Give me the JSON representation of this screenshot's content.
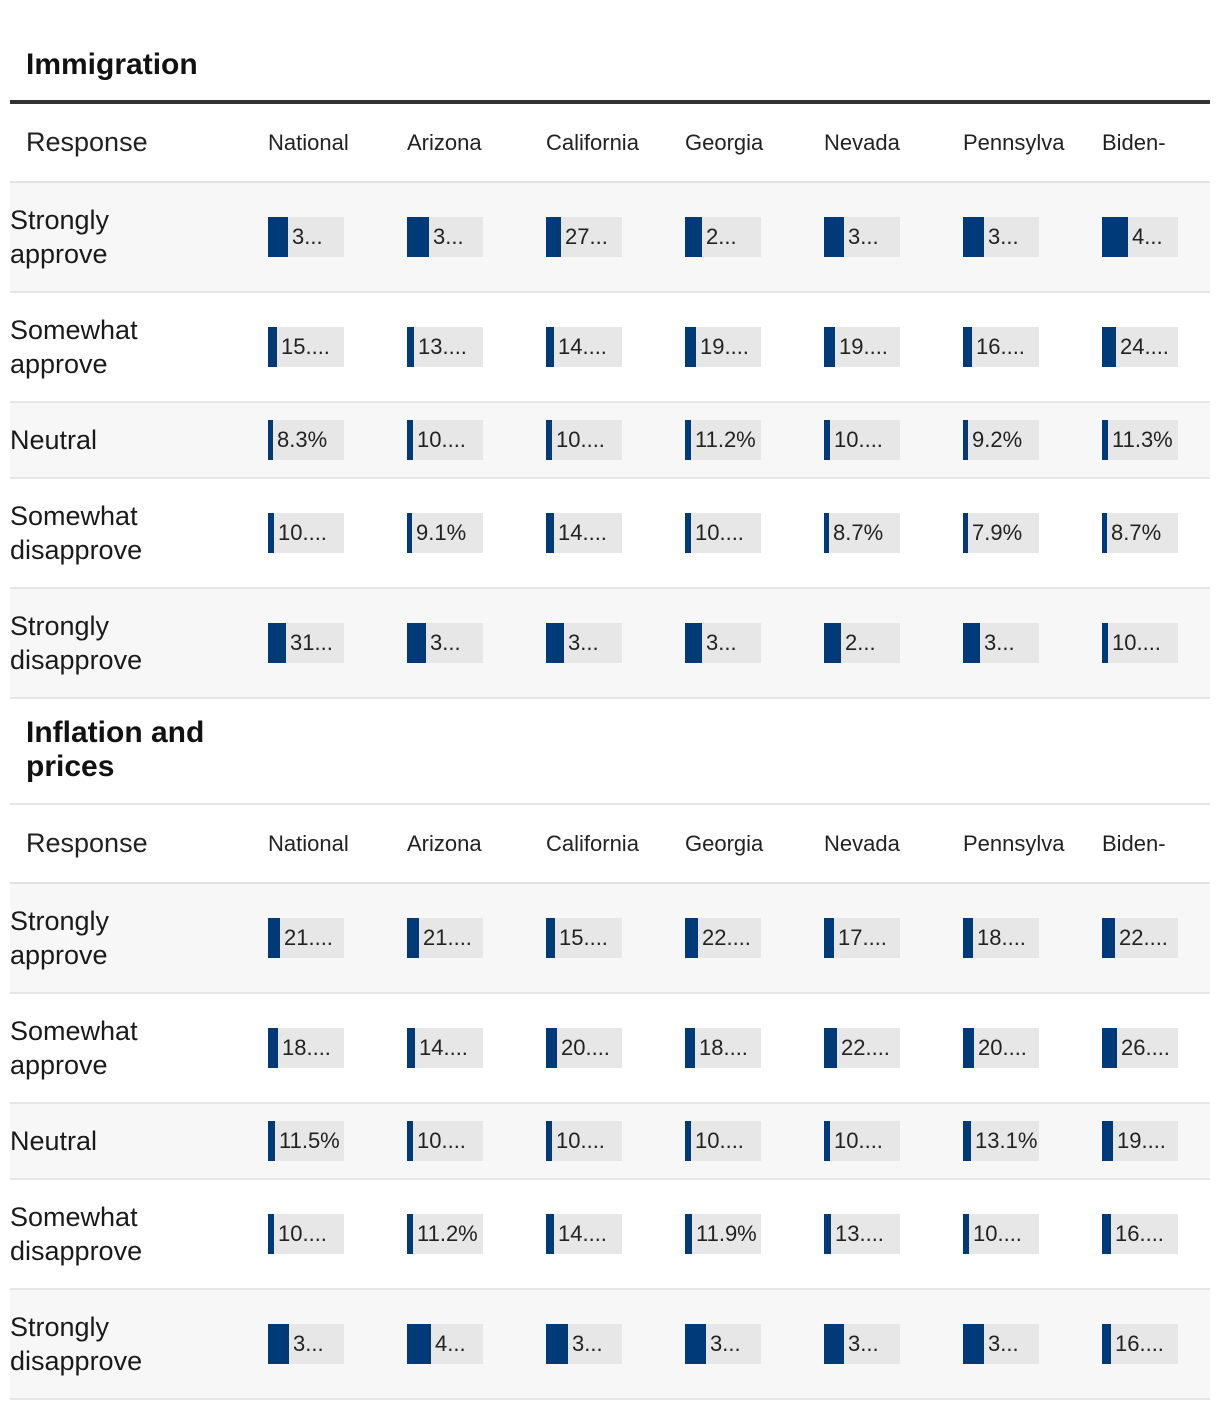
{
  "chart_data": [
    {
      "type": "table",
      "title": "Immigration",
      "columns": [
        "Response",
        "National",
        "Arizona",
        "California",
        "Georgia",
        "Nevada",
        "Pennsylva",
        "Biden-"
      ],
      "rows": [
        {
          "response": "Strongly approve",
          "values": [
            35,
            38,
            27,
            30,
            35,
            36,
            45
          ],
          "labels": [
            "3...",
            "3...",
            "27...",
            "2...",
            "3...",
            "3...",
            "4..."
          ]
        },
        {
          "response": "Somewhat approve",
          "values": [
            15,
            13,
            14,
            19,
            19,
            16,
            24
          ],
          "labels": [
            "15....",
            "13....",
            "14....",
            "19....",
            "19....",
            "16....",
            "24...."
          ]
        },
        {
          "response": "Neutral",
          "values": [
            8.3,
            10,
            10,
            11.2,
            10,
            9.2,
            11.3
          ],
          "labels": [
            "8.3%",
            "10....",
            "10....",
            "11.2%",
            "10....",
            "9.2%",
            "11.3%"
          ]
        },
        {
          "response": "Somewhat disapprove",
          "values": [
            10,
            9.1,
            14,
            10,
            8.7,
            7.9,
            8.7
          ],
          "labels": [
            "10....",
            "9.1%",
            "14....",
            "10....",
            "8.7%",
            "7.9%",
            "8.7%"
          ]
        },
        {
          "response": "Strongly disapprove",
          "values": [
            31,
            33,
            32,
            30,
            29,
            30,
            10
          ],
          "labels": [
            "31...",
            "3...",
            "3...",
            "3...",
            "2...",
            "3...",
            "10...."
          ]
        }
      ]
    },
    {
      "type": "table",
      "title": "Inflation and prices",
      "columns": [
        "Response",
        "National",
        "Arizona",
        "California",
        "Georgia",
        "Nevada",
        "Pennsylva",
        "Biden-"
      ],
      "rows": [
        {
          "response": "Strongly approve",
          "values": [
            21,
            21,
            15,
            22,
            17,
            18,
            22
          ],
          "labels": [
            "21....",
            "21....",
            "15....",
            "22....",
            "17....",
            "18....",
            "22...."
          ]
        },
        {
          "response": "Somewhat approve",
          "values": [
            18,
            14,
            20,
            18,
            22,
            20,
            26
          ],
          "labels": [
            "18....",
            "14....",
            "20....",
            "18....",
            "22....",
            "20....",
            "26...."
          ]
        },
        {
          "response": "Neutral",
          "values": [
            11.5,
            10,
            10,
            10,
            10,
            13.1,
            19
          ],
          "labels": [
            "11.5%",
            "10....",
            "10....",
            "10....",
            "10....",
            "13.1%",
            "19...."
          ]
        },
        {
          "response": "Somewhat disapprove",
          "values": [
            10,
            11.2,
            14,
            11.9,
            13,
            10,
            16
          ],
          "labels": [
            "10....",
            "11.2%",
            "14....",
            "11.9%",
            "13....",
            "10....",
            "16...."
          ]
        },
        {
          "response": "Strongly disapprove",
          "values": [
            37,
            42,
            38,
            36,
            35,
            37,
            16
          ],
          "labels": [
            "3...",
            "4...",
            "3...",
            "3...",
            "3...",
            "3...",
            "16...."
          ]
        }
      ]
    }
  ],
  "colors": {
    "bar": "#003a78",
    "track": "#e7e7e7",
    "stripe": "#f7f7f7"
  }
}
